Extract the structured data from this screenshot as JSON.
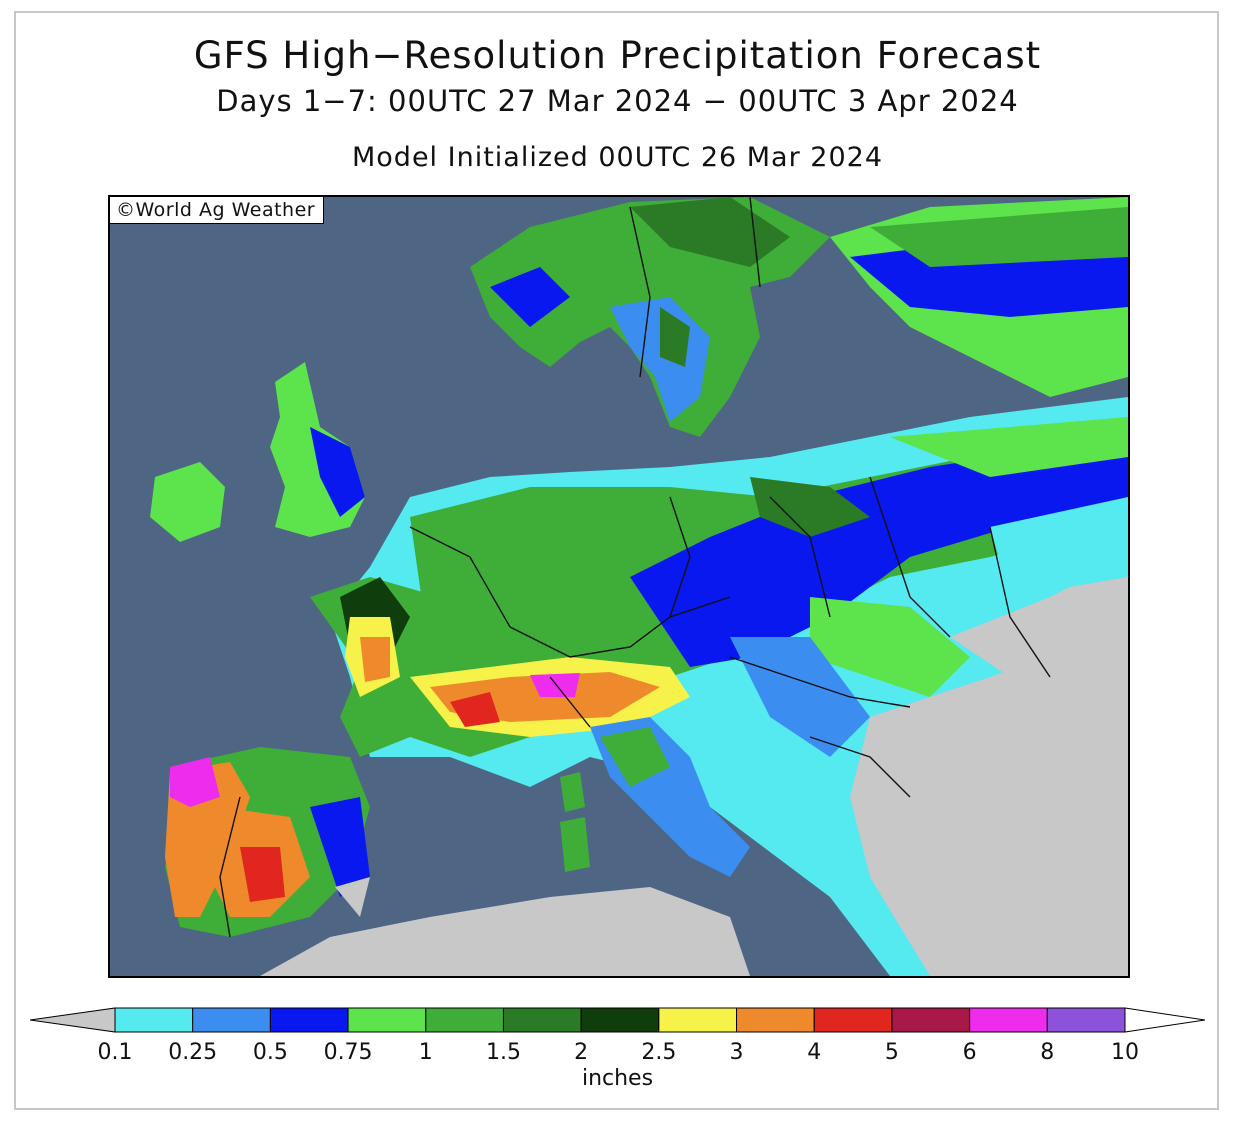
{
  "title": "GFS High−Resolution Precipitation Forecast",
  "subtitle": "Days 1−7: 00UTC 27 Mar 2024 − 00UTC 3 Apr 2024",
  "init_line": "Model Initialized 00UTC 26 Mar 2024",
  "copyright": "©World Ag Weather",
  "colors": {
    "ocean": "#4e6584",
    "dry": "#c8c8c8",
    "border": "#111111"
  },
  "legend": {
    "units": "inches",
    "under_color": "#c8c8c8",
    "over_color": "#ffffff",
    "bins": [
      {
        "color": "#55e9f0"
      },
      {
        "color": "#3b8df0"
      },
      {
        "color": "#0a18f0"
      },
      {
        "color": "#5de34c"
      },
      {
        "color": "#3fae38"
      },
      {
        "color": "#2a7a26"
      },
      {
        "color": "#0f3d0c"
      },
      {
        "color": "#f6f24a"
      },
      {
        "color": "#ef8a2c"
      },
      {
        "color": "#e0261e"
      },
      {
        "color": "#a81848"
      },
      {
        "color": "#ee2cee"
      },
      {
        "color": "#8c52dc"
      }
    ],
    "ticks": [
      "0.1",
      "0.25",
      "0.5",
      "0.75",
      "1",
      "1.5",
      "2",
      "2.5",
      "3",
      "4",
      "5",
      "6",
      "8",
      "10"
    ]
  }
}
